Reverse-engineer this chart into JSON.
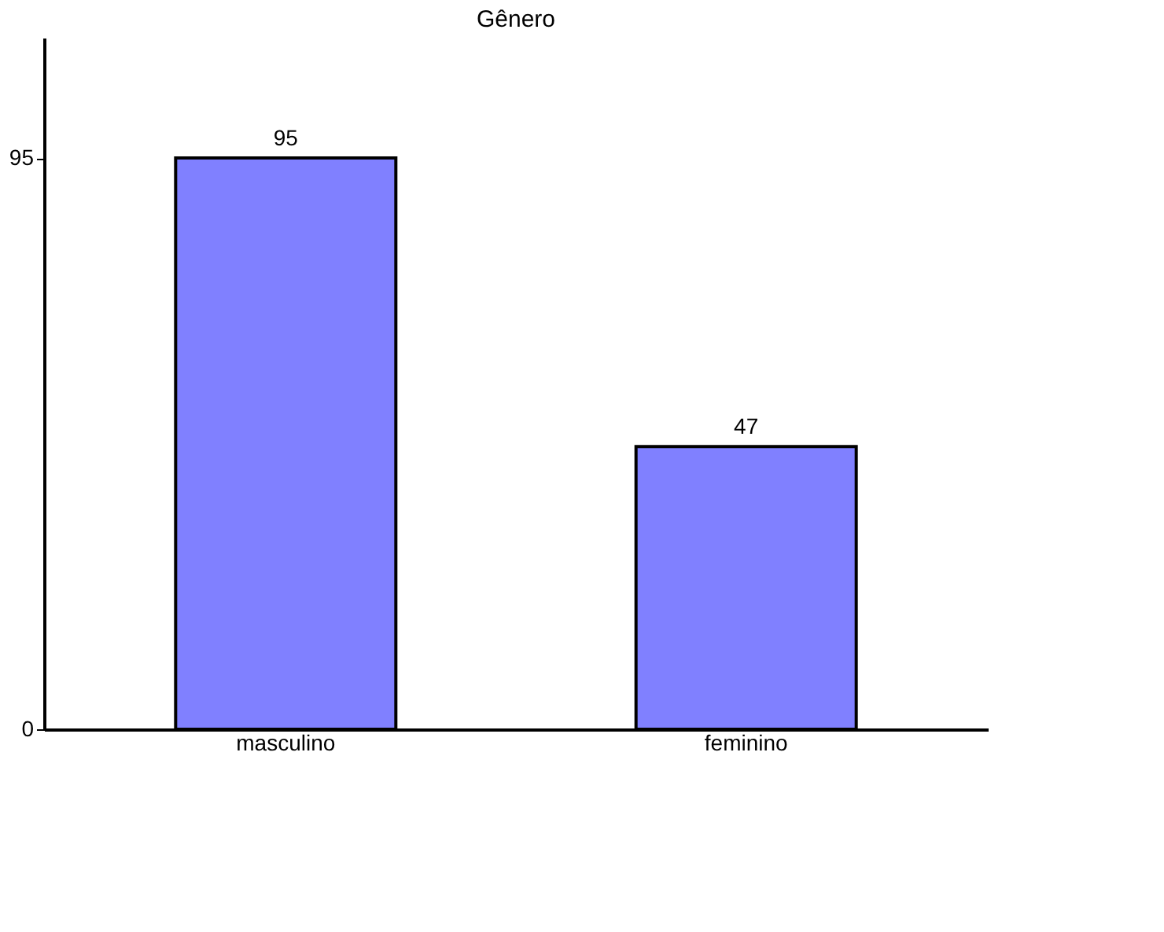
{
  "chart_data": {
    "type": "bar",
    "title": "Gênero",
    "categories": [
      "masculino",
      "feminino"
    ],
    "values": [
      95,
      47
    ],
    "color": "#8080ff",
    "ylim": [
      0,
      115
    ],
    "yticks": [
      0,
      95
    ],
    "grid": false,
    "data_labels": true
  }
}
